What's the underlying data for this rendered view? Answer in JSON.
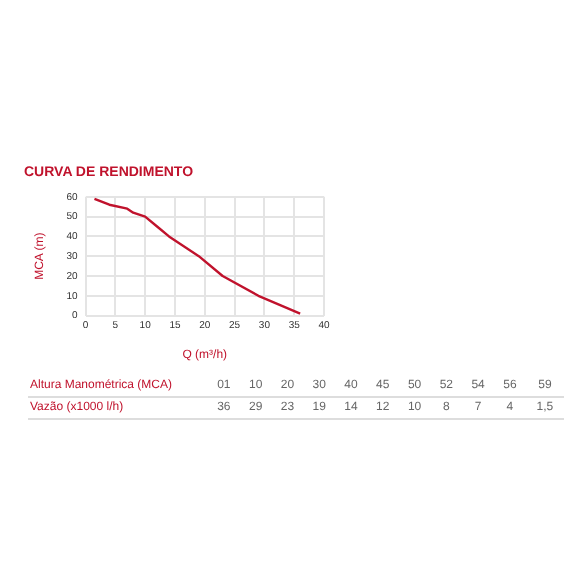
{
  "chart_data": [
    {
      "type": "line",
      "title": "CURVA DE RENDIMENTO",
      "xlabel": "Q (m³/h)",
      "ylabel": "MCA (m)",
      "x": [
        1.5,
        4,
        7,
        8,
        10,
        12,
        14,
        19,
        23,
        29,
        36
      ],
      "series": [
        {
          "color": "#c0122c",
          "values": [
            59,
            56,
            54,
            52,
            50,
            45,
            40,
            30,
            20,
            10,
            1
          ]
        }
      ],
      "xlim": [
        0,
        40
      ],
      "xticks": [
        0,
        5,
        10,
        15,
        20,
        25,
        30,
        35,
        40
      ],
      "ylim": [
        0,
        60
      ],
      "yticks": [
        0,
        10,
        20,
        30,
        40,
        50,
        60
      ],
      "grid": true,
      "marker": "none",
      "line_style": "solid"
    },
    {
      "type": "other",
      "annotations": [
        "Altura Manométrica (MCA)",
        "01",
        "10",
        "20",
        "30",
        "40",
        "45",
        "50",
        "52",
        "54",
        "56",
        "59",
        "Vazão (x1000 l/h)",
        "36",
        "29",
        "23",
        "19",
        "14",
        "12",
        "10",
        "8",
        "7",
        "4",
        "1,5"
      ]
    }
  ]
}
